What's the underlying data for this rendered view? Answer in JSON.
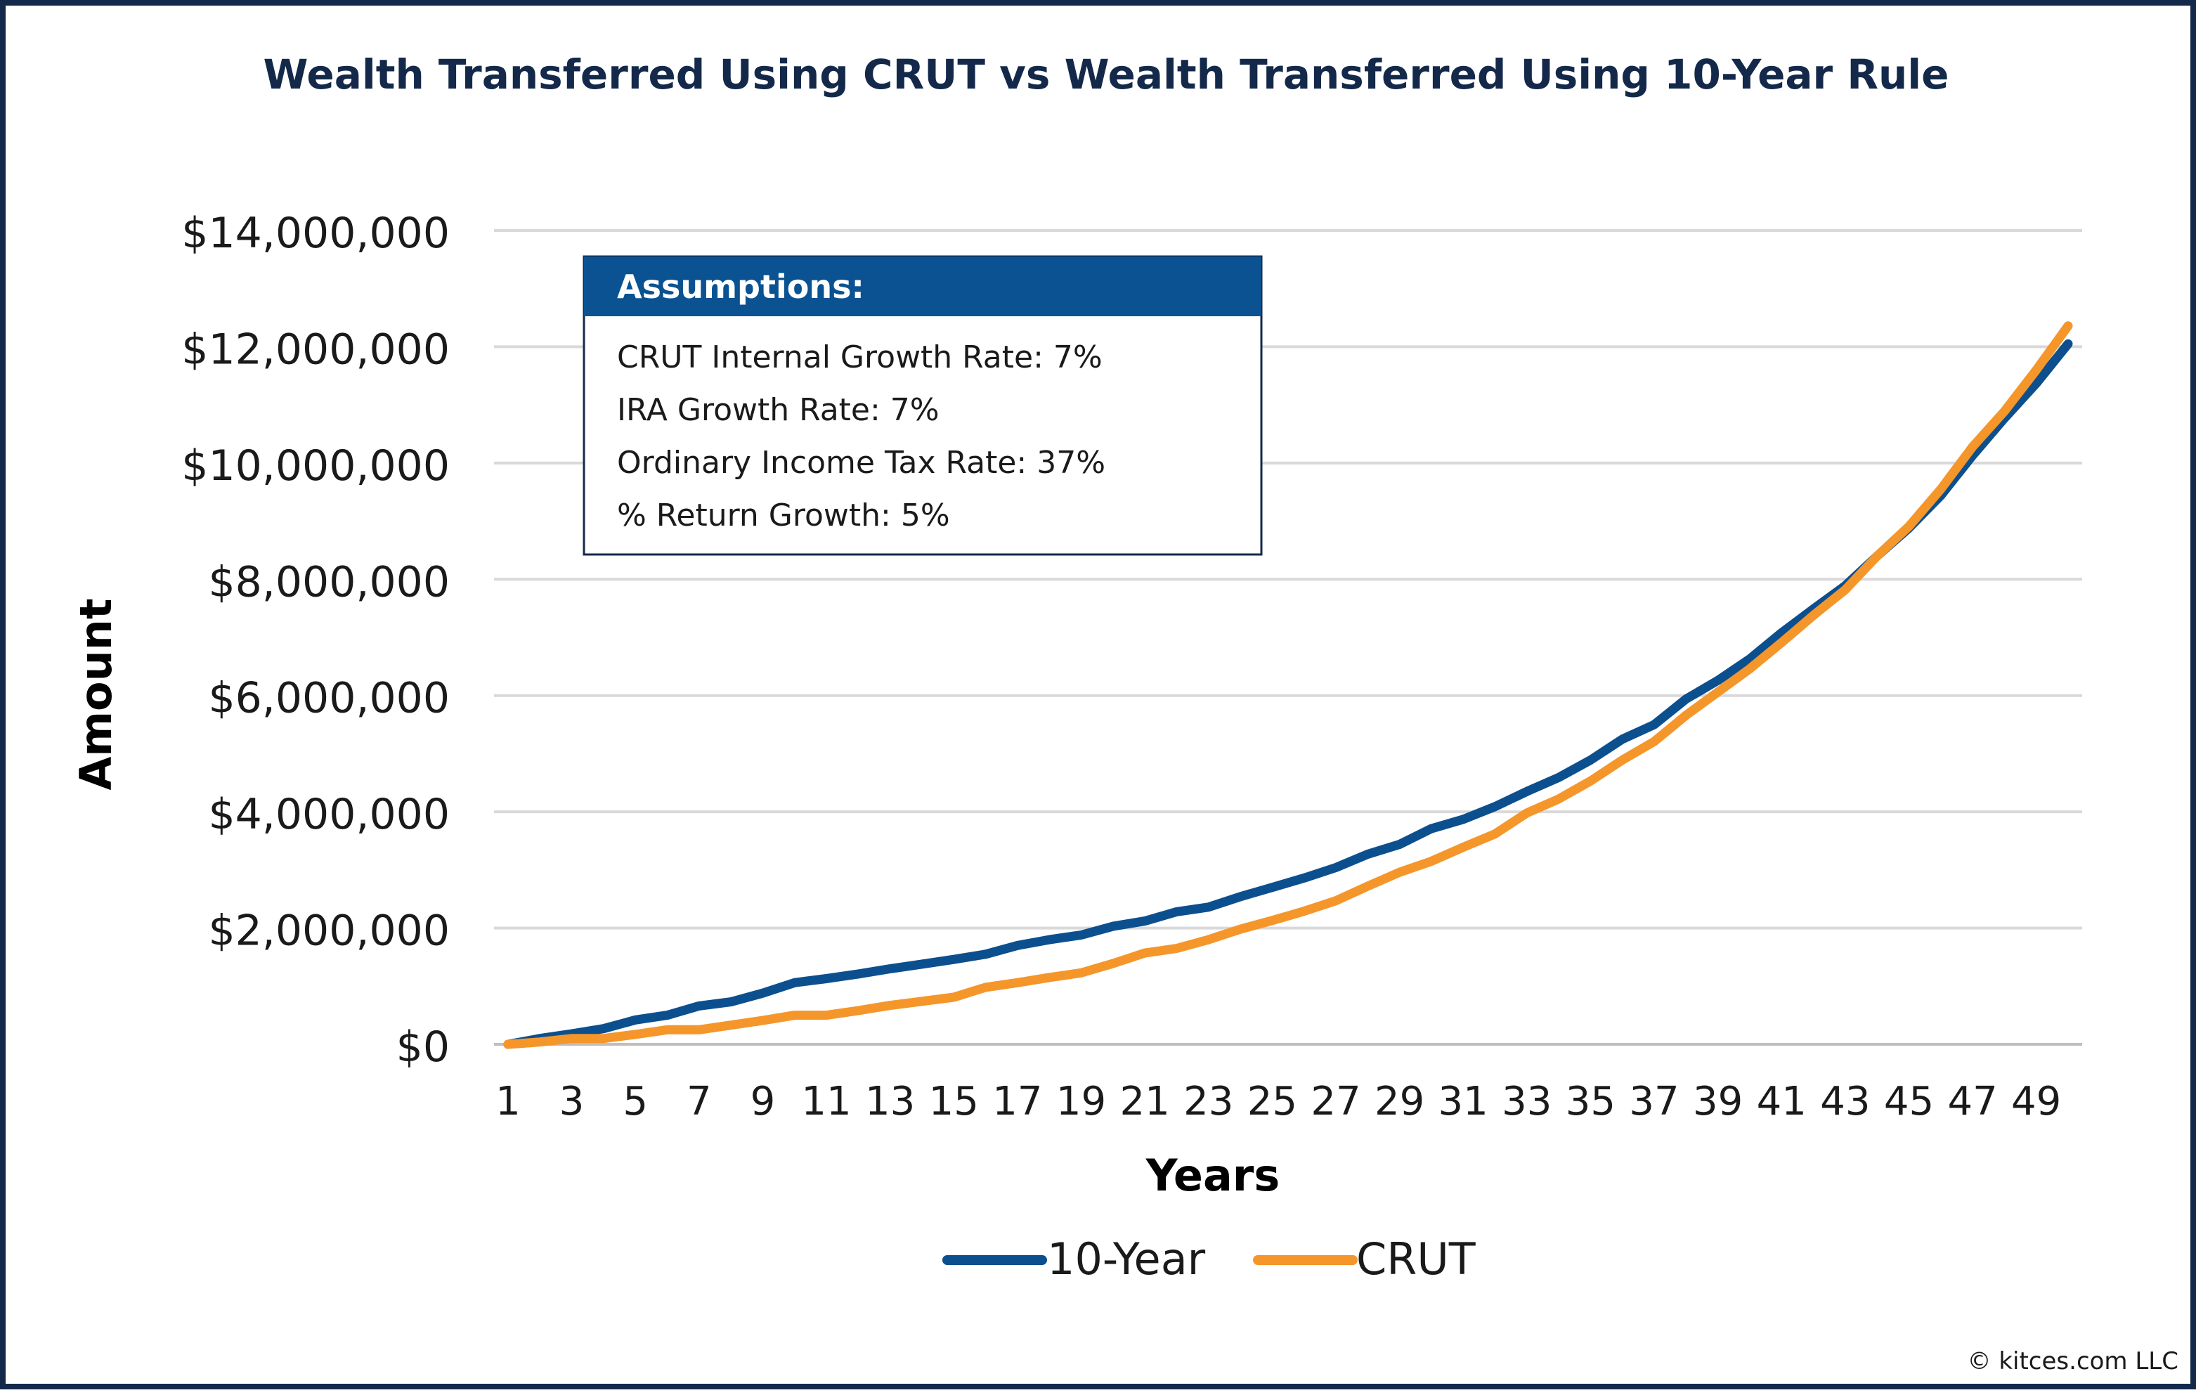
{
  "chart_data": {
    "type": "line",
    "title": "Wealth Transferred Using CRUT vs Wealth Transferred Using 10-Year Rule",
    "xlabel": "Years",
    "ylabel": "Amount",
    "x": [
      1,
      2,
      3,
      4,
      5,
      6,
      7,
      8,
      9,
      10,
      11,
      12,
      13,
      14,
      15,
      16,
      17,
      18,
      19,
      20,
      21,
      22,
      23,
      24,
      25,
      26,
      27,
      28,
      29,
      30,
      31,
      32,
      33,
      34,
      35,
      36,
      37,
      38,
      39,
      40,
      41,
      42,
      43,
      44,
      45,
      46,
      47,
      48,
      49,
      50
    ],
    "x_tick_labels": [
      "1",
      "3",
      "5",
      "7",
      "9",
      "11",
      "13",
      "15",
      "17",
      "19",
      "21",
      "23",
      "25",
      "27",
      "29",
      "31",
      "33",
      "35",
      "37",
      "39",
      "41",
      "43",
      "45",
      "47",
      "49"
    ],
    "ylim": [
      0,
      14000000
    ],
    "y_ticks": [
      0,
      2000000,
      4000000,
      6000000,
      8000000,
      10000000,
      12000000,
      14000000
    ],
    "y_tick_labels": [
      "$0",
      "$2,000,000",
      "$4,000,000",
      "$6,000,000",
      "$8,000,000",
      "$10,000,000",
      "$12,000,000",
      "$14,000,000"
    ],
    "grid": true,
    "legend_position": "bottom",
    "series": [
      {
        "name": "10-Year",
        "color": "#0c4f8e",
        "values": [
          0,
          100000,
          180000,
          270000,
          420000,
          500000,
          660000,
          730000,
          880000,
          1060000,
          1130000,
          1210000,
          1300000,
          1380000,
          1460000,
          1550000,
          1700000,
          1800000,
          1880000,
          2030000,
          2120000,
          2280000,
          2360000,
          2540000,
          2700000,
          2860000,
          3040000,
          3270000,
          3440000,
          3710000,
          3870000,
          4090000,
          4350000,
          4590000,
          4890000,
          5250000,
          5500000,
          5940000,
          6260000,
          6630000,
          7080000,
          7490000,
          7890000,
          8400000,
          8880000,
          9440000,
          10130000,
          10770000,
          11370000,
          12050000
        ]
      },
      {
        "name": "CRUT",
        "color": "#f5962b",
        "values": [
          0,
          40000,
          100000,
          100000,
          170000,
          250000,
          250000,
          330000,
          410000,
          500000,
          500000,
          580000,
          670000,
          740000,
          810000,
          980000,
          1060000,
          1150000,
          1230000,
          1390000,
          1570000,
          1650000,
          1800000,
          1980000,
          2130000,
          2290000,
          2470000,
          2720000,
          2960000,
          3150000,
          3390000,
          3620000,
          3980000,
          4220000,
          4530000,
          4890000,
          5210000,
          5660000,
          6060000,
          6460000,
          6910000,
          7380000,
          7820000,
          8400000,
          8910000,
          9550000,
          10280000,
          10890000,
          11600000,
          12360000
        ]
      }
    ]
  },
  "annotation": {
    "header": "Assumptions:",
    "lines": [
      "CRUT Internal Growth Rate: 7%",
      "IRA Growth Rate: 7%",
      "Ordinary Income Tax Rate: 37%",
      "% Return Growth: 5%"
    ],
    "header_color": "#0a5291"
  },
  "footer": {
    "copyright": "© kitces.com LLC"
  },
  "colors": {
    "frame": "#14294a",
    "title": "#14294a",
    "grid": "#d9d9d9"
  }
}
